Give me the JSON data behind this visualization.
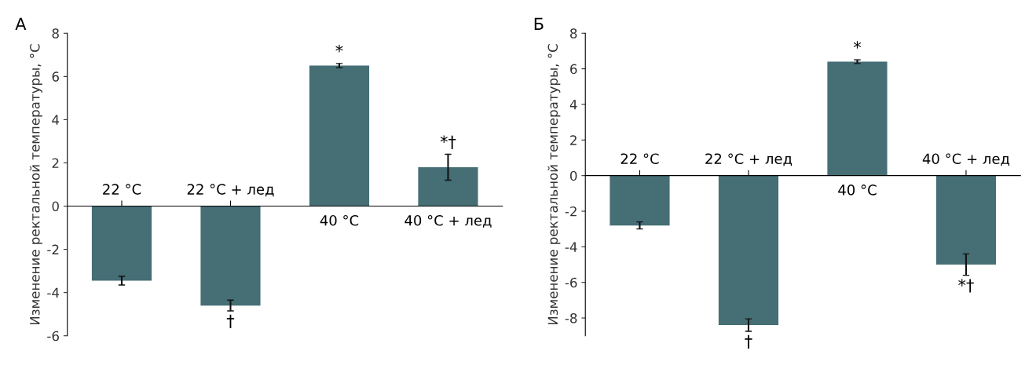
{
  "chart_data": [
    {
      "type": "bar",
      "title": "А",
      "ylabel": "Изменение ректальной температуры, °C",
      "categories": [
        "22 °C",
        "22 °C + лед",
        "40 °C",
        "40 °C + лед"
      ],
      "values": [
        -3.45,
        -4.6,
        6.5,
        1.8
      ],
      "errors": [
        0.2,
        0.25,
        0.1,
        0.6
      ],
      "color": "#456e75",
      "ylim": [
        -6,
        8
      ],
      "yticks": [
        -6,
        -4,
        -2,
        0,
        2,
        4,
        6,
        8
      ],
      "tick_labels": "y",
      "annotations": [
        {
          "text": "*",
          "x": "40 °C",
          "y": 6.6
        },
        {
          "text": "*†",
          "x": "40 °C + лед",
          "y": 2.4
        },
        {
          "text": "†",
          "x": "22 °C + лед",
          "y": -4.85
        }
      ]
    },
    {
      "type": "bar",
      "title": "Б",
      "ylabel": "Изменение ректальной температуры, °C",
      "categories": [
        "22 °C",
        "22 °C + лед",
        "40 °C",
        "40 °C + лед"
      ],
      "values": [
        -2.8,
        -8.4,
        6.4,
        -5.0
      ],
      "errors": [
        0.2,
        0.35,
        0.1,
        0.6
      ],
      "color": "#456e75",
      "ylim": [
        -9,
        8
      ],
      "yticks": [
        -8,
        -6,
        -4,
        -2,
        0,
        2,
        4,
        6,
        8
      ],
      "tick_labels": "y",
      "annotations": [
        {
          "text": "*",
          "x": "40 °C",
          "y": 6.5
        },
        {
          "text": "†",
          "x": "22 °C + лед",
          "y": -8.75
        },
        {
          "text": "*†",
          "x": "40 °C + лед",
          "y": -5.6
        }
      ]
    }
  ]
}
